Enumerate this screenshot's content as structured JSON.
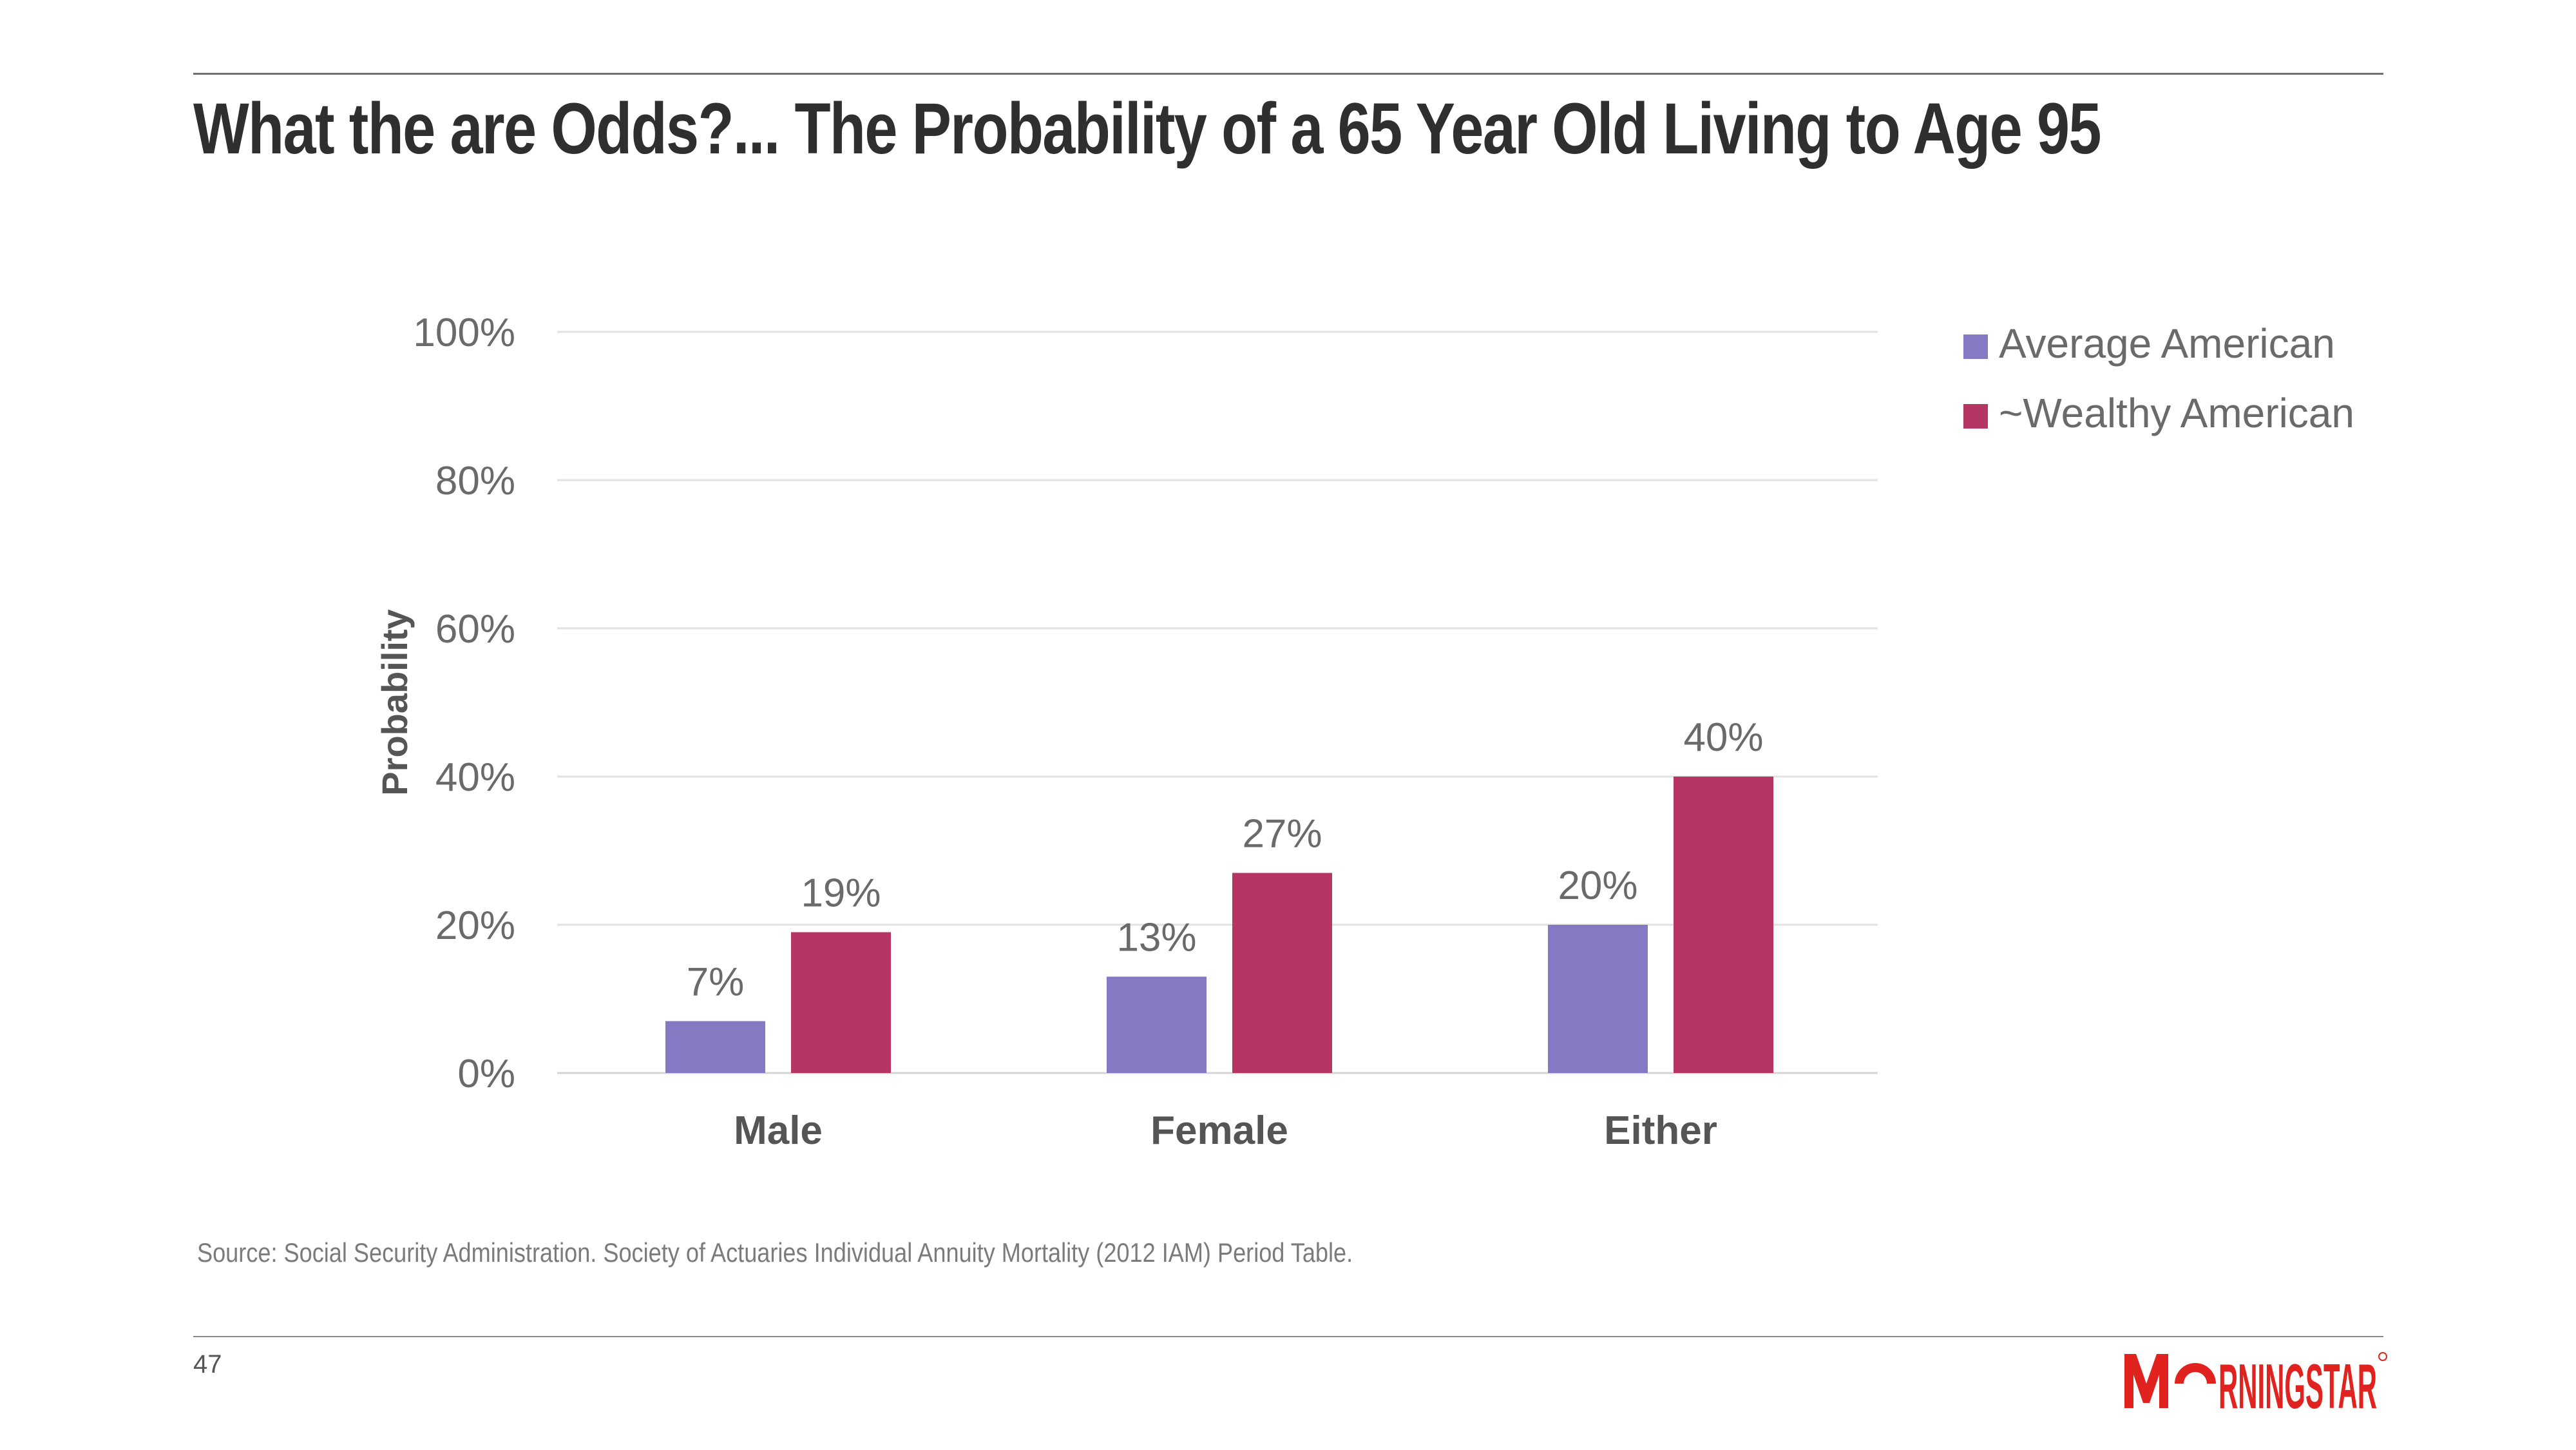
{
  "slide": {
    "title": "What the are Odds?...  The Probability of a 65 Year Old Living to Age 95",
    "source": "Source: Social Security Administration. Society of Actuaries Individual Annuity Mortality (2012 IAM) Period Table.",
    "page_number": "47",
    "logo_text": "MORNINGSTAR"
  },
  "colors": {
    "average": "#8479c2",
    "wealthy": "#b53664",
    "brand": "#e0231f"
  },
  "chart_data": {
    "type": "bar",
    "categories": [
      "Male",
      "Female",
      "Either"
    ],
    "series": [
      {
        "name": "Average American",
        "values": [
          7,
          13,
          20
        ],
        "labels": [
          "7%",
          "13%",
          "20%"
        ]
      },
      {
        "name": "~Wealthy American",
        "values": [
          19,
          27,
          40
        ],
        "labels": [
          "19%",
          "27%",
          "40%"
        ]
      }
    ],
    "ylabel": "Probability",
    "xlabel": "",
    "ylim": [
      0,
      100
    ],
    "yticks": [
      0,
      20,
      40,
      60,
      80,
      100
    ],
    "ytick_labels": [
      "0%",
      "20%",
      "40%",
      "60%",
      "80%",
      "100%"
    ],
    "grid": true,
    "legend": "top-right"
  }
}
